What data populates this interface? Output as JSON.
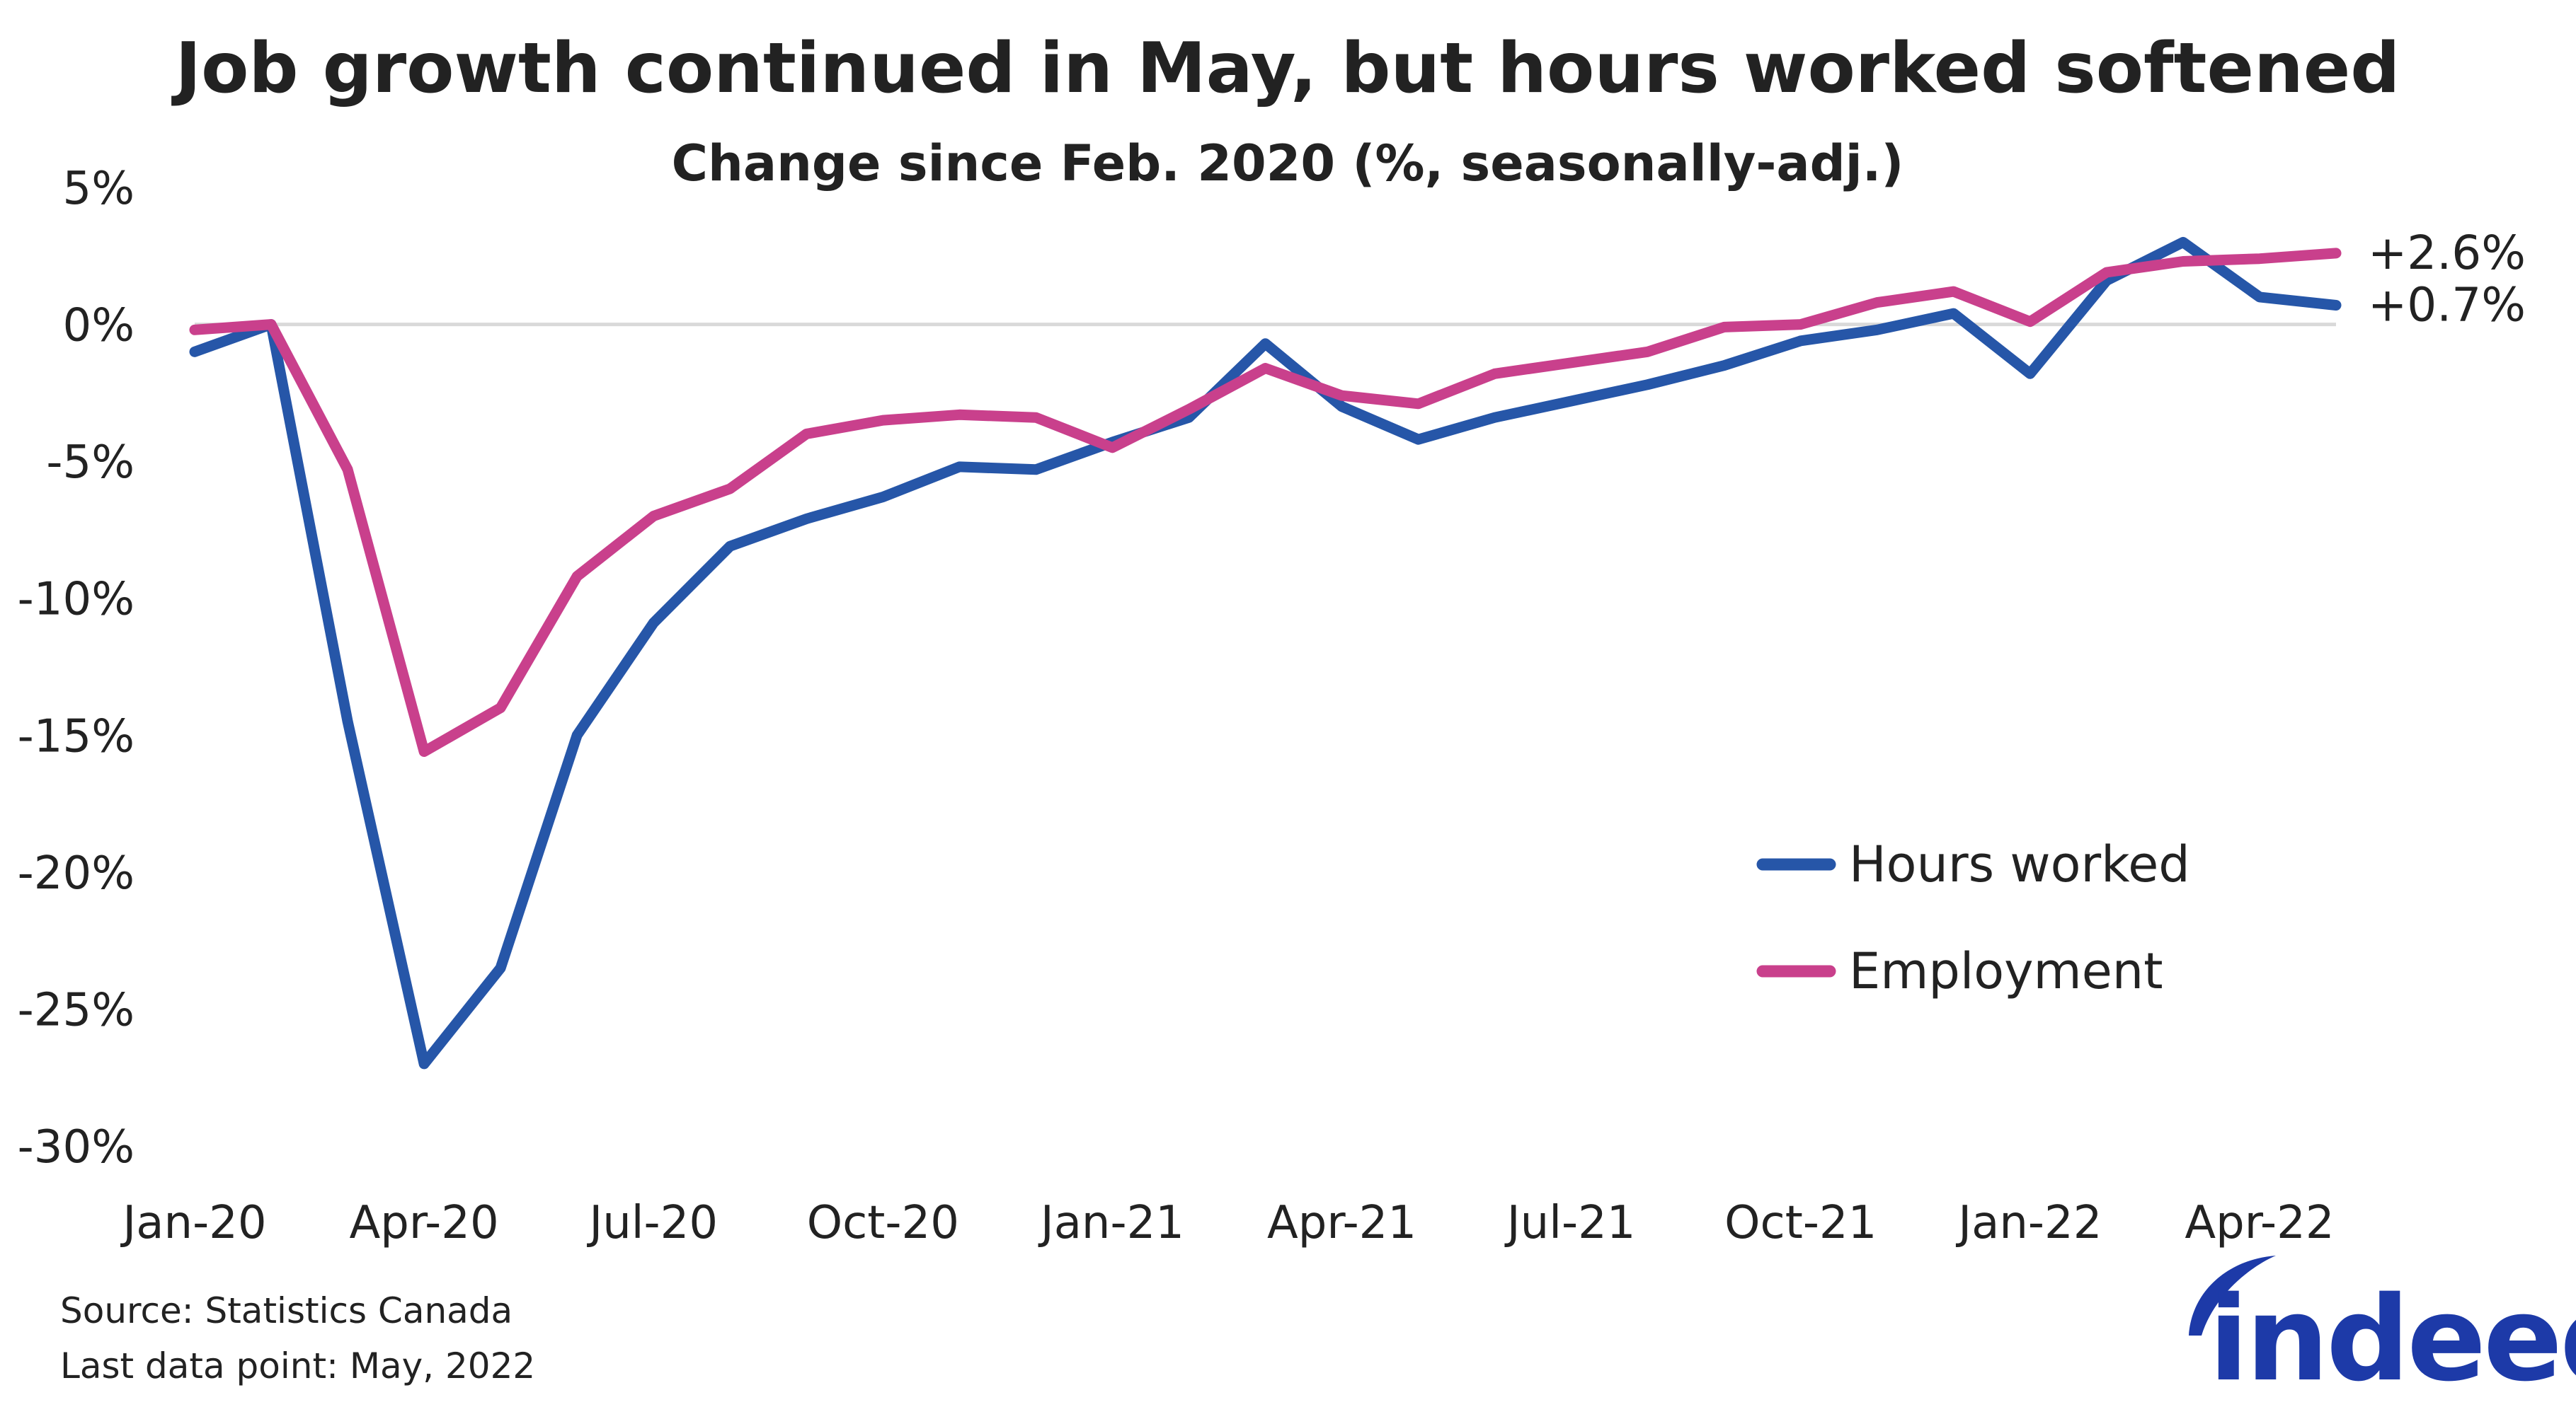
{
  "chart_data": {
    "type": "line",
    "title": "Job growth continued in May, but hours worked softened",
    "subtitle": "Change since Feb. 2020 (%, seasonally-adj.)",
    "xlabel": "",
    "ylabel": "",
    "ylim": [
      -30,
      5
    ],
    "y_ticks": [
      5,
      0,
      -5,
      -10,
      -15,
      -20,
      -25,
      -30
    ],
    "y_tick_labels": [
      "5%",
      "0%",
      "-5%",
      "-10%",
      "-15%",
      "-20%",
      "-25%",
      "-30%"
    ],
    "x": [
      "Jan-20",
      "Feb-20",
      "Mar-20",
      "Apr-20",
      "May-20",
      "Jun-20",
      "Jul-20",
      "Aug-20",
      "Sep-20",
      "Oct-20",
      "Nov-20",
      "Dec-20",
      "Jan-21",
      "Feb-21",
      "Mar-21",
      "Apr-21",
      "May-21",
      "Jun-21",
      "Jul-21",
      "Aug-21",
      "Sep-21",
      "Oct-21",
      "Nov-21",
      "Dec-21",
      "Jan-22",
      "Feb-22",
      "Mar-22",
      "Apr-22",
      "May-22"
    ],
    "x_tick_labels": [
      {
        "index": 0,
        "label": "Jan-20"
      },
      {
        "index": 3,
        "label": "Apr-20"
      },
      {
        "index": 6,
        "label": "Jul-20"
      },
      {
        "index": 9,
        "label": "Oct-20"
      },
      {
        "index": 12,
        "label": "Jan-21"
      },
      {
        "index": 15,
        "label": "Apr-21"
      },
      {
        "index": 18,
        "label": "Jul-21"
      },
      {
        "index": 21,
        "label": "Oct-21"
      },
      {
        "index": 24,
        "label": "Jan-22"
      },
      {
        "index": 27,
        "label": "Apr-22"
      }
    ],
    "grid": false,
    "zero_line": true,
    "legend": "lower-right",
    "series": [
      {
        "name": "Hours worked",
        "color": "#2656a8",
        "end_label": "+0.7%",
        "values": [
          -1.0,
          0.0,
          -14.5,
          -27.0,
          -23.5,
          -15.0,
          -10.9,
          -8.1,
          -7.1,
          -6.3,
          -5.2,
          -5.3,
          -4.3,
          -3.4,
          -0.7,
          -3.0,
          -4.2,
          -3.4,
          -2.8,
          -2.2,
          -1.5,
          -0.6,
          -0.2,
          0.4,
          -1.8,
          1.6,
          3.0,
          1.0,
          0.7
        ]
      },
      {
        "name": "Employment",
        "color": "#c9408c",
        "end_label": "+2.6%",
        "values": [
          -0.2,
          0.0,
          -5.3,
          -15.6,
          -14.0,
          -9.2,
          -7.0,
          -6.0,
          -4.0,
          -3.5,
          -3.3,
          -3.4,
          -4.5,
          -3.1,
          -1.6,
          -2.6,
          -2.9,
          -1.8,
          -1.4,
          -1.0,
          -0.1,
          0.0,
          0.8,
          1.2,
          0.1,
          1.9,
          2.3,
          2.4,
          2.6
        ]
      }
    ]
  },
  "footer": {
    "source": "Source: Statistics Canada",
    "last_data_point": "Last data point: May, 2022"
  },
  "logo": {
    "text": "indeed",
    "color": "#1d3aa8"
  }
}
